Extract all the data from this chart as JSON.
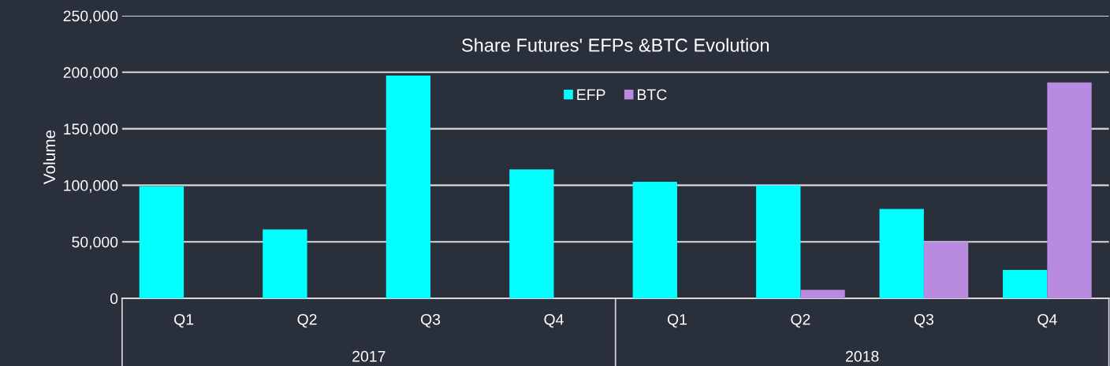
{
  "chart_data": {
    "type": "bar",
    "title": "Share Futures' EFPs &BTC Evolution",
    "ylabel": "Volume",
    "categories": [
      "Q1",
      "Q2",
      "Q3",
      "Q4",
      "Q1",
      "Q2",
      "Q3",
      "Q4"
    ],
    "series": [
      {
        "name": "EFP",
        "color": "#00ffff",
        "values": [
          99000,
          61000,
          197000,
          114000,
          103000,
          100000,
          79000,
          25000
        ]
      },
      {
        "name": "BTC",
        "color": "#b88ae0",
        "values": [
          null,
          null,
          null,
          null,
          null,
          7500,
          50000,
          191000
        ]
      }
    ],
    "annotations": [
      "2017",
      "2018"
    ],
    "ylim": [
      0,
      250000
    ],
    "yticks": [
      0,
      {
        "value": 50000,
        "label": "50,000"
      },
      {
        "value": 100000,
        "label": "100,000"
      },
      {
        "value": 150000,
        "label": "150,000"
      },
      {
        "value": 200000,
        "label": "200,000"
      },
      {
        "value": 250000,
        "label": "250,000"
      }
    ],
    "grid": "y",
    "legend": "top"
  }
}
